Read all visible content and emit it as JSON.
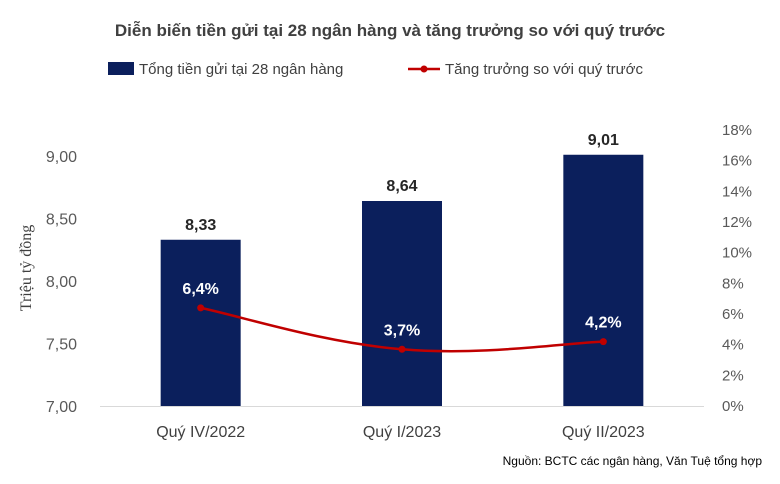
{
  "chart_data": {
    "type": "bar",
    "title": "Diễn biến tiền gửi tại 28 ngân hàng và tăng trưởng so với quý trước",
    "categories": [
      "Quý IV/2022",
      "Quý I/2023",
      "Quý II/2023"
    ],
    "series": [
      {
        "name": "Tổng tiền gửi tại 28 ngân hàng",
        "type": "bar",
        "axis": "left",
        "values": [
          8.33,
          8.64,
          9.01
        ],
        "labels": [
          "8,33",
          "8,64",
          "9,01"
        ],
        "color": "#0b1f5c"
      },
      {
        "name": "Tăng trưởng so với quý trước",
        "type": "line",
        "axis": "right",
        "values": [
          6.4,
          3.7,
          4.2
        ],
        "labels": [
          "6,4%",
          "3,7%",
          "4,2%"
        ],
        "color": "#c00000"
      }
    ],
    "ylabel": "Triệu tỷ đồng",
    "ylim": [
      7.0,
      9.0
    ],
    "y_ticks": [
      "7,00",
      "7,50",
      "8,00",
      "8,50",
      "9,00"
    ],
    "y2lim": [
      0,
      18
    ],
    "y2_ticks": [
      "0%",
      "2%",
      "4%",
      "6%",
      "8%",
      "10%",
      "12%",
      "14%",
      "16%",
      "18%"
    ],
    "legend_position": "top",
    "grid": false
  },
  "source_note": "Nguồn: BCTC các ngân hàng, Văn Tuệ tổng hợp"
}
